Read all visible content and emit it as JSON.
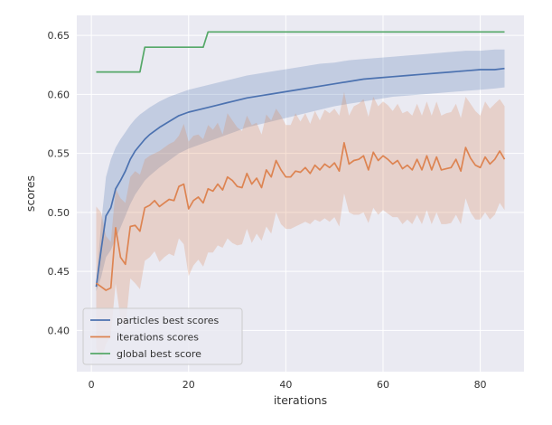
{
  "chart_data": {
    "type": "line",
    "title": "",
    "xlabel": "iterations",
    "ylabel": "scores",
    "xlim": [
      -3,
      89
    ],
    "ylim": [
      0.365,
      0.667
    ],
    "xticks": [
      0,
      20,
      40,
      60,
      80
    ],
    "yticks": [
      0.4,
      0.45,
      0.5,
      0.55,
      0.6,
      0.65
    ],
    "grid": true,
    "legend_position": "lower-left",
    "series": [
      {
        "name": "particles best scores",
        "color": "#4c72b0",
        "x": [
          1,
          2,
          3,
          4,
          5,
          6,
          7,
          8,
          9,
          10,
          11,
          12,
          14,
          16,
          18,
          20,
          22,
          24,
          26,
          28,
          30,
          32,
          35,
          38,
          41,
          44,
          47,
          50,
          53,
          56,
          59,
          62,
          65,
          68,
          71,
          74,
          77,
          80,
          83,
          85
        ],
        "y": [
          0.437,
          0.468,
          0.497,
          0.504,
          0.52,
          0.527,
          0.535,
          0.545,
          0.552,
          0.557,
          0.562,
          0.566,
          0.572,
          0.577,
          0.582,
          0.585,
          0.587,
          0.589,
          0.591,
          0.593,
          0.595,
          0.597,
          0.599,
          0.601,
          0.603,
          0.605,
          0.607,
          0.609,
          0.611,
          0.613,
          0.614,
          0.615,
          0.616,
          0.617,
          0.618,
          0.619,
          0.62,
          0.621,
          0.621,
          0.622
        ],
        "band_upper": [
          0.44,
          0.49,
          0.53,
          0.545,
          0.555,
          0.562,
          0.568,
          0.574,
          0.579,
          0.583,
          0.586,
          0.589,
          0.594,
          0.598,
          0.601,
          0.604,
          0.606,
          0.608,
          0.61,
          0.612,
          0.614,
          0.616,
          0.618,
          0.62,
          0.622,
          0.624,
          0.626,
          0.627,
          0.629,
          0.63,
          0.631,
          0.632,
          0.633,
          0.634,
          0.635,
          0.636,
          0.637,
          0.637,
          0.638,
          0.638
        ],
        "band_lower": [
          0.433,
          0.445,
          0.462,
          0.468,
          0.478,
          0.487,
          0.497,
          0.507,
          0.515,
          0.521,
          0.527,
          0.531,
          0.538,
          0.544,
          0.55,
          0.554,
          0.557,
          0.56,
          0.563,
          0.566,
          0.569,
          0.572,
          0.575,
          0.578,
          0.581,
          0.584,
          0.587,
          0.59,
          0.592,
          0.594,
          0.596,
          0.598,
          0.599,
          0.6,
          0.601,
          0.602,
          0.603,
          0.604,
          0.605,
          0.606
        ]
      },
      {
        "name": "iterations scores",
        "color": "#dd8452",
        "x": [
          1,
          2,
          3,
          4,
          5,
          6,
          7,
          8,
          9,
          10,
          11,
          12,
          13,
          14,
          15,
          16,
          17,
          18,
          19,
          20,
          21,
          22,
          23,
          24,
          25,
          26,
          27,
          28,
          29,
          30,
          31,
          32,
          33,
          34,
          35,
          36,
          37,
          38,
          39,
          40,
          41,
          42,
          43,
          44,
          45,
          46,
          47,
          48,
          49,
          50,
          51,
          52,
          53,
          54,
          55,
          56,
          57,
          58,
          59,
          60,
          61,
          62,
          63,
          64,
          65,
          66,
          67,
          68,
          69,
          70,
          71,
          72,
          73,
          74,
          75,
          76,
          77,
          78,
          79,
          80,
          81,
          82,
          83,
          84,
          85
        ],
        "y": [
          0.44,
          0.437,
          0.434,
          0.436,
          0.487,
          0.462,
          0.456,
          0.488,
          0.489,
          0.484,
          0.504,
          0.506,
          0.51,
          0.505,
          0.508,
          0.511,
          0.51,
          0.522,
          0.524,
          0.503,
          0.51,
          0.513,
          0.508,
          0.52,
          0.518,
          0.524,
          0.519,
          0.53,
          0.527,
          0.522,
          0.521,
          0.533,
          0.524,
          0.529,
          0.521,
          0.536,
          0.53,
          0.544,
          0.536,
          0.53,
          0.53,
          0.535,
          0.534,
          0.538,
          0.533,
          0.54,
          0.536,
          0.541,
          0.538,
          0.542,
          0.535,
          0.559,
          0.541,
          0.544,
          0.545,
          0.548,
          0.536,
          0.551,
          0.544,
          0.548,
          0.545,
          0.541,
          0.544,
          0.537,
          0.54,
          0.536,
          0.545,
          0.536,
          0.548,
          0.536,
          0.547,
          0.536,
          0.537,
          0.538,
          0.545,
          0.535,
          0.555,
          0.546,
          0.54,
          0.538,
          0.547,
          0.541,
          0.545,
          0.552,
          0.545
        ],
        "band_upper": [
          0.505,
          0.5,
          0.48,
          0.475,
          0.52,
          0.512,
          0.508,
          0.53,
          0.535,
          0.532,
          0.545,
          0.548,
          0.55,
          0.552,
          0.555,
          0.558,
          0.56,
          0.565,
          0.575,
          0.56,
          0.565,
          0.566,
          0.562,
          0.574,
          0.57,
          0.576,
          0.566,
          0.584,
          0.578,
          0.572,
          0.569,
          0.582,
          0.574,
          0.576,
          0.566,
          0.583,
          0.578,
          0.588,
          0.582,
          0.574,
          0.574,
          0.584,
          0.577,
          0.584,
          0.575,
          0.586,
          0.578,
          0.587,
          0.584,
          0.588,
          0.582,
          0.602,
          0.582,
          0.59,
          0.592,
          0.596,
          0.581,
          0.598,
          0.59,
          0.594,
          0.591,
          0.586,
          0.592,
          0.584,
          0.586,
          0.582,
          0.592,
          0.582,
          0.594,
          0.582,
          0.594,
          0.582,
          0.584,
          0.585,
          0.592,
          0.58,
          0.598,
          0.592,
          0.586,
          0.582,
          0.594,
          0.588,
          0.592,
          0.596,
          0.59
        ],
        "band_lower": [
          0.385,
          0.375,
          0.388,
          0.396,
          0.44,
          0.41,
          0.402,
          0.444,
          0.44,
          0.435,
          0.459,
          0.462,
          0.467,
          0.458,
          0.462,
          0.465,
          0.463,
          0.478,
          0.473,
          0.446,
          0.455,
          0.46,
          0.454,
          0.466,
          0.466,
          0.472,
          0.47,
          0.478,
          0.474,
          0.472,
          0.473,
          0.486,
          0.474,
          0.482,
          0.476,
          0.488,
          0.482,
          0.5,
          0.49,
          0.486,
          0.486,
          0.488,
          0.49,
          0.492,
          0.49,
          0.494,
          0.492,
          0.495,
          0.492,
          0.496,
          0.488,
          0.516,
          0.5,
          0.498,
          0.498,
          0.5,
          0.491,
          0.504,
          0.498,
          0.502,
          0.499,
          0.496,
          0.496,
          0.49,
          0.494,
          0.49,
          0.498,
          0.49,
          0.502,
          0.49,
          0.5,
          0.49,
          0.49,
          0.491,
          0.498,
          0.49,
          0.512,
          0.5,
          0.494,
          0.494,
          0.5,
          0.494,
          0.498,
          0.508,
          0.502
        ]
      },
      {
        "name": "global best score",
        "color": "#55a868",
        "x": [
          1,
          10,
          11,
          23,
          24,
          85
        ],
        "y": [
          0.619,
          0.619,
          0.64,
          0.64,
          0.653,
          0.653
        ]
      }
    ]
  }
}
